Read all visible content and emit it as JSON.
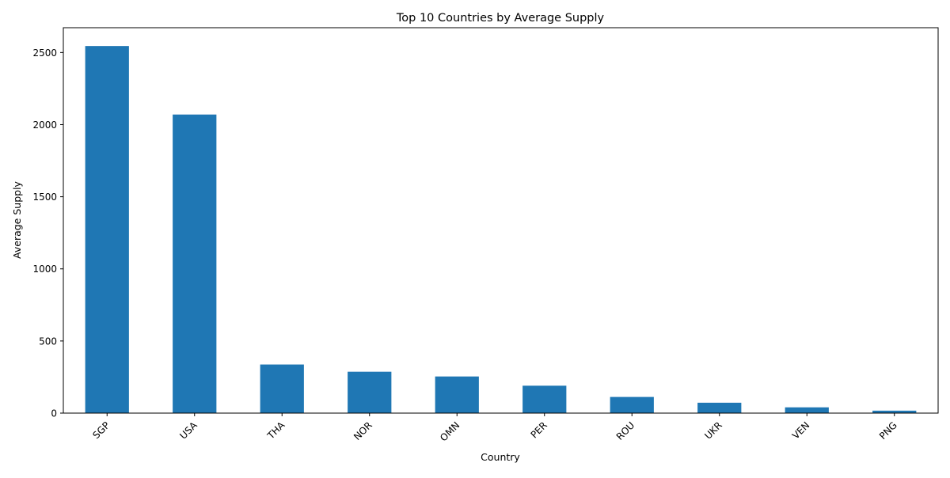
{
  "chart_data": {
    "type": "bar",
    "title": "Top 10 Countries by Average Supply",
    "xlabel": "Country",
    "ylabel": "Average Supply",
    "categories": [
      "SGP",
      "USA",
      "THA",
      "NOR",
      "OMN",
      "PER",
      "ROU",
      "UKR",
      "VEN",
      "PNG"
    ],
    "values": [
      2545,
      2070,
      337,
      287,
      254,
      190,
      112,
      72,
      40,
      17
    ],
    "ylim": [
      0,
      2672
    ],
    "yticks": [
      0,
      500,
      1000,
      1500,
      2000,
      2500
    ],
    "grid": false,
    "legend": "none",
    "bar_color": "#1f77b4"
  }
}
